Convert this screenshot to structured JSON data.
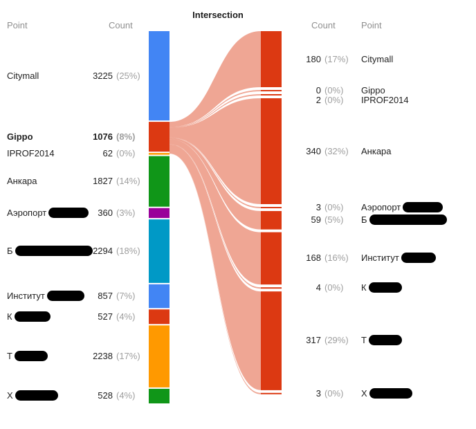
{
  "title": "Intersection",
  "left_panel": {
    "headers": {
      "point": "Point",
      "count": "Count"
    },
    "rows": [
      {
        "label": "Citymall",
        "count": "3225",
        "pct": "(25%)",
        "bold": false,
        "redact_w": 0
      },
      {
        "label": "Gippo",
        "count": "1076",
        "pct": "(8%)",
        "bold": true,
        "redact_w": 0
      },
      {
        "label": "IPROF2014",
        "count": "62",
        "pct": "(0%)",
        "bold": false,
        "redact_w": 0
      },
      {
        "label": "Анкара",
        "count": "1827",
        "pct": "(14%)",
        "bold": false,
        "redact_w": 0
      },
      {
        "label": "Аэропорт",
        "count": "360",
        "pct": "(3%)",
        "bold": false,
        "redact_w": 58
      },
      {
        "label": "Б",
        "count": "2294",
        "pct": "(18%)",
        "bold": false,
        "redact_w": 112
      },
      {
        "label": "Институт",
        "count": "857",
        "pct": "(7%)",
        "bold": false,
        "redact_w": 54
      },
      {
        "label": "К",
        "count": "527",
        "pct": "(4%)",
        "bold": false,
        "redact_w": 52
      },
      {
        "label": "Т",
        "count": "2238",
        "pct": "(17%)",
        "bold": false,
        "redact_w": 48
      },
      {
        "label": "Х",
        "count": "528",
        "pct": "(4%)",
        "bold": false,
        "redact_w": 62
      }
    ]
  },
  "right_panel": {
    "headers": {
      "count": "Count",
      "point": "Point"
    },
    "rows": [
      {
        "label": "Citymall",
        "count": "180",
        "pct": "(17%)",
        "redact_w": 0
      },
      {
        "label": "Gippo",
        "count": "0",
        "pct": "(0%)",
        "redact_w": 0
      },
      {
        "label": "IPROF2014",
        "count": "2",
        "pct": "(0%)",
        "redact_w": 0
      },
      {
        "label": "Анкара",
        "count": "340",
        "pct": "(32%)",
        "redact_w": 0
      },
      {
        "label": "Аэропорт",
        "count": "3",
        "pct": "(0%)",
        "redact_w": 58
      },
      {
        "label": "Б",
        "count": "59",
        "pct": "(5%)",
        "redact_w": 112
      },
      {
        "label": "Институт",
        "count": "168",
        "pct": "(16%)",
        "redact_w": 50
      },
      {
        "label": "К",
        "count": "4",
        "pct": "(0%)",
        "redact_w": 48
      },
      {
        "label": "Т",
        "count": "317",
        "pct": "(29%)",
        "redact_w": 48
      },
      {
        "label": "Х",
        "count": "3",
        "pct": "(0%)",
        "redact_w": 62
      }
    ]
  },
  "chart_data": {
    "type": "sankey",
    "title": "Intersection",
    "source_node": "Gippo",
    "left_nodes": [
      {
        "name": "Citymall",
        "value": 3225,
        "pct": 25,
        "color": "#4285f4",
        "redacted": false
      },
      {
        "name": "Gippo",
        "value": 1076,
        "pct": 8,
        "color": "#dc3912",
        "redacted": false
      },
      {
        "name": "IPROF2014",
        "value": 62,
        "pct": 0,
        "color": "#ff9900",
        "redacted": false
      },
      {
        "name": "Анкара",
        "value": 1827,
        "pct": 14,
        "color": "#109618",
        "redacted": false
      },
      {
        "name": "Аэропорт",
        "value": 360,
        "pct": 3,
        "color": "#990099",
        "redacted": true
      },
      {
        "name": "Б",
        "value": 2294,
        "pct": 18,
        "color": "#0099c6",
        "redacted": true
      },
      {
        "name": "Институт",
        "value": 857,
        "pct": 7,
        "color": "#4285f4",
        "redacted": true
      },
      {
        "name": "К",
        "value": 527,
        "pct": 4,
        "color": "#dc3912",
        "redacted": true
      },
      {
        "name": "Т",
        "value": 2238,
        "pct": 17,
        "color": "#ff9900",
        "redacted": true
      },
      {
        "name": "Х",
        "value": 528,
        "pct": 4,
        "color": "#109618",
        "redacted": true
      }
    ],
    "right_nodes": [
      {
        "name": "Citymall",
        "value": 180,
        "pct": 17
      },
      {
        "name": "Gippo",
        "value": 0,
        "pct": 0
      },
      {
        "name": "IPROF2014",
        "value": 2,
        "pct": 0
      },
      {
        "name": "Анкара",
        "value": 340,
        "pct": 32
      },
      {
        "name": "Аэропорт",
        "value": 3,
        "pct": 0
      },
      {
        "name": "Б",
        "value": 59,
        "pct": 5
      },
      {
        "name": "Институт",
        "value": 168,
        "pct": 16
      },
      {
        "name": "К",
        "value": 4,
        "pct": 0
      },
      {
        "name": "Т",
        "value": 317,
        "pct": 29
      },
      {
        "name": "Х",
        "value": 3,
        "pct": 0
      }
    ],
    "right_node_color": "#dc3912",
    "flow_color": "#dc3912",
    "flow_opacity": 0.45
  }
}
